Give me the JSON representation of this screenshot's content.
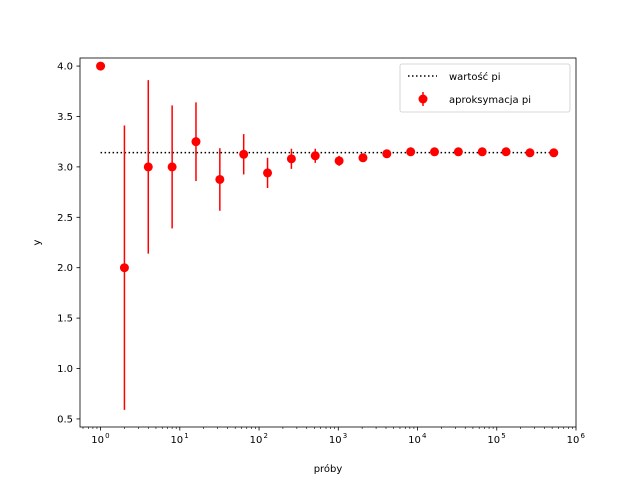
{
  "chart_data": {
    "type": "scatter",
    "title": "",
    "xlabel": "próby",
    "ylabel": "y",
    "xscale": "log",
    "xlim": [
      0.55,
      1000000
    ],
    "ylim": [
      0.42,
      4.08
    ],
    "grid": false,
    "legend_position": "top-right",
    "x_ticks": [
      {
        "value": 1,
        "base": "10",
        "exp": "0"
      },
      {
        "value": 10,
        "base": "10",
        "exp": "1"
      },
      {
        "value": 100,
        "base": "10",
        "exp": "2"
      },
      {
        "value": 1000,
        "base": "10",
        "exp": "3"
      },
      {
        "value": 10000,
        "base": "10",
        "exp": "4"
      },
      {
        "value": 100000,
        "base": "10",
        "exp": "5"
      },
      {
        "value": 1000000,
        "base": "10",
        "exp": "6"
      }
    ],
    "y_ticks": [
      "0.5",
      "1.0",
      "1.5",
      "2.0",
      "2.5",
      "3.0",
      "3.5",
      "4.0"
    ],
    "reference_line": {
      "name": "wartość pi",
      "value": 3.14159,
      "x_range": [
        1,
        524288
      ],
      "color": "#000000",
      "style": "dotted"
    },
    "series": [
      {
        "name": "aproksymacja pi",
        "color": "#ff0000",
        "points": [
          {
            "x": 1,
            "y": 4.0,
            "err": 0.0
          },
          {
            "x": 2,
            "y": 2.0,
            "err": 1.41
          },
          {
            "x": 4,
            "y": 3.0,
            "err": 0.86
          },
          {
            "x": 8,
            "y": 3.0,
            "err": 0.61
          },
          {
            "x": 16,
            "y": 3.25,
            "err": 0.39
          },
          {
            "x": 32,
            "y": 2.875,
            "err": 0.31
          },
          {
            "x": 64,
            "y": 3.125,
            "err": 0.2
          },
          {
            "x": 128,
            "y": 2.94,
            "err": 0.15
          },
          {
            "x": 256,
            "y": 3.08,
            "err": 0.1
          },
          {
            "x": 512,
            "y": 3.11,
            "err": 0.07
          },
          {
            "x": 1024,
            "y": 3.06,
            "err": 0.05
          },
          {
            "x": 2048,
            "y": 3.09,
            "err": 0.035
          },
          {
            "x": 4096,
            "y": 3.13,
            "err": 0.025
          },
          {
            "x": 8192,
            "y": 3.15,
            "err": 0.018
          },
          {
            "x": 16384,
            "y": 3.15,
            "err": 0.013
          },
          {
            "x": 32768,
            "y": 3.15,
            "err": 0.009
          },
          {
            "x": 65536,
            "y": 3.15,
            "err": 0.006
          },
          {
            "x": 131072,
            "y": 3.15,
            "err": 0.0045
          },
          {
            "x": 262144,
            "y": 3.14,
            "err": 0.003
          },
          {
            "x": 524288,
            "y": 3.14,
            "err": 0.002
          }
        ]
      }
    ]
  }
}
